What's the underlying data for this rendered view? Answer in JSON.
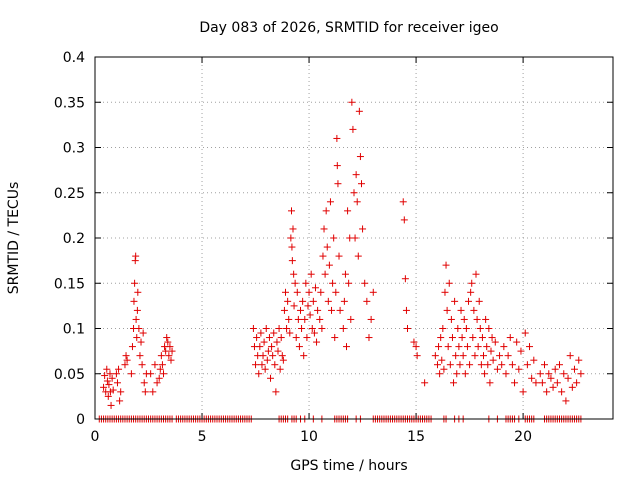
{
  "chart_data": {
    "type": "scatter",
    "title": "Day 083 of 2026, SRMTID for receiver igeo",
    "xlabel": "GPS time / hours",
    "ylabel": "SRMTID / TECUs",
    "xlim": [
      0,
      24.2
    ],
    "ylim": [
      0,
      0.4
    ],
    "xticks": [
      0,
      5,
      10,
      15,
      20
    ],
    "yticks": [
      0,
      0.05,
      0.1,
      0.15,
      0.2,
      0.25,
      0.3,
      0.35,
      0.4
    ],
    "grid": true,
    "marker": "+",
    "color": "#e00000",
    "series": [
      {
        "name": "SRMTID",
        "points": [
          [
            0.4,
            0.035
          ],
          [
            0.45,
            0.048
          ],
          [
            0.5,
            0.03
          ],
          [
            0.55,
            0.055
          ],
          [
            0.58,
            0.042
          ],
          [
            0.62,
            0.025
          ],
          [
            0.65,
            0.038
          ],
          [
            0.7,
            0.05
          ],
          [
            0.72,
            0.03
          ],
          [
            0.75,
            0.015
          ],
          [
            0.8,
            0.045
          ],
          [
            0.85,
            0.032
          ],
          [
            1.0,
            0.05
          ],
          [
            1.05,
            0.04
          ],
          [
            1.1,
            0.055
          ],
          [
            1.15,
            0.02
          ],
          [
            1.2,
            0.03
          ],
          [
            1.4,
            0.06
          ],
          [
            1.45,
            0.07
          ],
          [
            1.5,
            0.065
          ],
          [
            1.7,
            0.05
          ],
          [
            1.75,
            0.08
          ],
          [
            1.8,
            0.1
          ],
          [
            1.82,
            0.13
          ],
          [
            1.85,
            0.15
          ],
          [
            1.88,
            0.175
          ],
          [
            1.9,
            0.18
          ],
          [
            1.92,
            0.11
          ],
          [
            1.95,
            0.09
          ],
          [
            1.98,
            0.12
          ],
          [
            2.0,
            0.14
          ],
          [
            2.05,
            0.1
          ],
          [
            2.1,
            0.07
          ],
          [
            2.15,
            0.085
          ],
          [
            2.2,
            0.06
          ],
          [
            2.25,
            0.095
          ],
          [
            2.3,
            0.04
          ],
          [
            2.35,
            0.03
          ],
          [
            2.4,
            0.05
          ],
          [
            2.6,
            0.05
          ],
          [
            2.7,
            0.03
          ],
          [
            2.8,
            0.06
          ],
          [
            2.9,
            0.04
          ],
          [
            3.0,
            0.045
          ],
          [
            3.05,
            0.055
          ],
          [
            3.1,
            0.07
          ],
          [
            3.15,
            0.06
          ],
          [
            3.2,
            0.05
          ],
          [
            3.25,
            0.08
          ],
          [
            3.3,
            0.075
          ],
          [
            3.35,
            0.09
          ],
          [
            3.4,
            0.085
          ],
          [
            3.45,
            0.07
          ],
          [
            3.5,
            0.08
          ],
          [
            3.55,
            0.065
          ],
          [
            3.6,
            0.075
          ],
          [
            7.4,
            0.1
          ],
          [
            7.45,
            0.08
          ],
          [
            7.5,
            0.06
          ],
          [
            7.55,
            0.09
          ],
          [
            7.6,
            0.07
          ],
          [
            7.65,
            0.05
          ],
          [
            7.7,
            0.08
          ],
          [
            7.75,
            0.095
          ],
          [
            7.8,
            0.06
          ],
          [
            7.85,
            0.07
          ],
          [
            7.9,
            0.085
          ],
          [
            7.95,
            0.055
          ],
          [
            8.0,
            0.1
          ],
          [
            8.05,
            0.065
          ],
          [
            8.1,
            0.075
          ],
          [
            8.15,
            0.09
          ],
          [
            8.2,
            0.045
          ],
          [
            8.25,
            0.08
          ],
          [
            8.3,
            0.07
          ],
          [
            8.35,
            0.095
          ],
          [
            8.4,
            0.06
          ],
          [
            8.45,
            0.03
          ],
          [
            8.5,
            0.085
          ],
          [
            8.55,
            0.075
          ],
          [
            8.6,
            0.1
          ],
          [
            8.65,
            0.055
          ],
          [
            8.7,
            0.09
          ],
          [
            8.75,
            0.07
          ],
          [
            8.8,
            0.065
          ],
          [
            8.85,
            0.12
          ],
          [
            8.9,
            0.14
          ],
          [
            8.95,
            0.1
          ],
          [
            9.0,
            0.13
          ],
          [
            9.05,
            0.11
          ],
          [
            9.1,
            0.095
          ],
          [
            9.15,
            0.2
          ],
          [
            9.18,
            0.23
          ],
          [
            9.2,
            0.19
          ],
          [
            9.22,
            0.175
          ],
          [
            9.25,
            0.21
          ],
          [
            9.28,
            0.16
          ],
          [
            9.3,
            0.125
          ],
          [
            9.35,
            0.15
          ],
          [
            9.4,
            0.09
          ],
          [
            9.45,
            0.14
          ],
          [
            9.5,
            0.11
          ],
          [
            9.55,
            0.08
          ],
          [
            9.6,
            0.12
          ],
          [
            9.65,
            0.1
          ],
          [
            9.7,
            0.13
          ],
          [
            9.75,
            0.07
          ],
          [
            9.8,
            0.11
          ],
          [
            9.85,
            0.15
          ],
          [
            9.9,
            0.09
          ],
          [
            9.95,
            0.125
          ],
          [
            10.0,
            0.14
          ],
          [
            10.05,
            0.115
          ],
          [
            10.1,
            0.16
          ],
          [
            10.15,
            0.1
          ],
          [
            10.2,
            0.13
          ],
          [
            10.25,
            0.095
          ],
          [
            10.3,
            0.145
          ],
          [
            10.35,
            0.085
          ],
          [
            10.4,
            0.12
          ],
          [
            10.5,
            0.11
          ],
          [
            10.55,
            0.14
          ],
          [
            10.6,
            0.1
          ],
          [
            10.65,
            0.18
          ],
          [
            10.7,
            0.21
          ],
          [
            10.75,
            0.16
          ],
          [
            10.8,
            0.23
          ],
          [
            10.85,
            0.19
          ],
          [
            10.9,
            0.13
          ],
          [
            10.95,
            0.17
          ],
          [
            11.0,
            0.24
          ],
          [
            11.05,
            0.12
          ],
          [
            11.1,
            0.15
          ],
          [
            11.15,
            0.2
          ],
          [
            11.2,
            0.09
          ],
          [
            11.25,
            0.14
          ],
          [
            11.3,
            0.31
          ],
          [
            11.32,
            0.28
          ],
          [
            11.35,
            0.26
          ],
          [
            11.4,
            0.18
          ],
          [
            11.45,
            0.12
          ],
          [
            11.6,
            0.1
          ],
          [
            11.65,
            0.13
          ],
          [
            11.7,
            0.16
          ],
          [
            11.75,
            0.08
          ],
          [
            11.8,
            0.23
          ],
          [
            11.85,
            0.15
          ],
          [
            11.9,
            0.2
          ],
          [
            11.95,
            0.11
          ],
          [
            12.0,
            0.35
          ],
          [
            12.05,
            0.32
          ],
          [
            12.1,
            0.25
          ],
          [
            12.15,
            0.2
          ],
          [
            12.2,
            0.27
          ],
          [
            12.25,
            0.24
          ],
          [
            12.3,
            0.18
          ],
          [
            12.35,
            0.34
          ],
          [
            12.4,
            0.29
          ],
          [
            12.45,
            0.26
          ],
          [
            12.5,
            0.21
          ],
          [
            12.6,
            0.15
          ],
          [
            12.7,
            0.13
          ],
          [
            12.8,
            0.09
          ],
          [
            12.9,
            0.11
          ],
          [
            13.0,
            0.14
          ],
          [
            14.4,
            0.24
          ],
          [
            14.45,
            0.22
          ],
          [
            14.5,
            0.155
          ],
          [
            14.55,
            0.12
          ],
          [
            14.6,
            0.1
          ],
          [
            14.9,
            0.085
          ],
          [
            15.0,
            0.08
          ],
          [
            15.05,
            0.07
          ],
          [
            15.4,
            0.04
          ],
          [
            15.9,
            0.07
          ],
          [
            16.0,
            0.06
          ],
          [
            16.05,
            0.08
          ],
          [
            16.1,
            0.05
          ],
          [
            16.15,
            0.09
          ],
          [
            16.2,
            0.065
          ],
          [
            16.25,
            0.1
          ],
          [
            16.3,
            0.055
          ],
          [
            16.35,
            0.14
          ],
          [
            16.4,
            0.17
          ],
          [
            16.45,
            0.12
          ],
          [
            16.5,
            0.08
          ],
          [
            16.55,
            0.15
          ],
          [
            16.6,
            0.06
          ],
          [
            16.65,
            0.11
          ],
          [
            16.7,
            0.09
          ],
          [
            16.75,
            0.04
          ],
          [
            16.8,
            0.13
          ],
          [
            16.85,
            0.07
          ],
          [
            16.9,
            0.05
          ],
          [
            16.95,
            0.1
          ],
          [
            17.0,
            0.08
          ],
          [
            17.05,
            0.06
          ],
          [
            17.1,
            0.12
          ],
          [
            17.15,
            0.09
          ],
          [
            17.2,
            0.07
          ],
          [
            17.25,
            0.11
          ],
          [
            17.3,
            0.05
          ],
          [
            17.35,
            0.1
          ],
          [
            17.4,
            0.08
          ],
          [
            17.45,
            0.13
          ],
          [
            17.5,
            0.06
          ],
          [
            17.55,
            0.14
          ],
          [
            17.6,
            0.15
          ],
          [
            17.65,
            0.09
          ],
          [
            17.7,
            0.12
          ],
          [
            17.75,
            0.07
          ],
          [
            17.8,
            0.16
          ],
          [
            17.85,
            0.11
          ],
          [
            17.9,
            0.08
          ],
          [
            17.95,
            0.13
          ],
          [
            18.0,
            0.1
          ],
          [
            18.05,
            0.06
          ],
          [
            18.1,
            0.09
          ],
          [
            18.15,
            0.07
          ],
          [
            18.2,
            0.05
          ],
          [
            18.25,
            0.11
          ],
          [
            18.3,
            0.08
          ],
          [
            18.35,
            0.06
          ],
          [
            18.4,
            0.1
          ],
          [
            18.45,
            0.04
          ],
          [
            18.5,
            0.075
          ],
          [
            18.55,
            0.09
          ],
          [
            18.6,
            0.065
          ],
          [
            18.7,
            0.085
          ],
          [
            18.8,
            0.055
          ],
          [
            18.9,
            0.07
          ],
          [
            19.0,
            0.06
          ],
          [
            19.1,
            0.08
          ],
          [
            19.2,
            0.05
          ],
          [
            19.3,
            0.07
          ],
          [
            19.4,
            0.09
          ],
          [
            19.5,
            0.06
          ],
          [
            19.6,
            0.04
          ],
          [
            19.7,
            0.085
          ],
          [
            19.8,
            0.055
          ],
          [
            19.9,
            0.075
          ],
          [
            20.0,
            0.03
          ],
          [
            20.1,
            0.095
          ],
          [
            20.2,
            0.06
          ],
          [
            20.3,
            0.08
          ],
          [
            20.4,
            0.045
          ],
          [
            20.5,
            0.065
          ],
          [
            20.6,
            0.04
          ],
          [
            20.8,
            0.05
          ],
          [
            20.9,
            0.04
          ],
          [
            21.0,
            0.06
          ],
          [
            21.1,
            0.03
          ],
          [
            21.2,
            0.05
          ],
          [
            21.3,
            0.045
          ],
          [
            21.4,
            0.035
          ],
          [
            21.5,
            0.055
          ],
          [
            21.6,
            0.04
          ],
          [
            21.7,
            0.06
          ],
          [
            21.8,
            0.03
          ],
          [
            21.9,
            0.05
          ],
          [
            22.0,
            0.02
          ],
          [
            22.1,
            0.045
          ],
          [
            22.2,
            0.07
          ],
          [
            22.3,
            0.035
          ],
          [
            22.4,
            0.055
          ],
          [
            22.5,
            0.04
          ],
          [
            22.6,
            0.065
          ],
          [
            22.7,
            0.05
          ]
        ],
        "zero_hours": [
          0.2,
          0.3,
          0.4,
          0.5,
          0.6,
          0.7,
          0.8,
          0.9,
          1.0,
          1.1,
          1.2,
          1.3,
          1.4,
          1.5,
          1.6,
          1.7,
          1.8,
          1.9,
          2.0,
          2.1,
          2.2,
          2.3,
          2.4,
          2.5,
          2.6,
          2.7,
          2.8,
          2.9,
          3.0,
          3.1,
          3.2,
          3.3,
          3.4,
          3.5,
          3.6,
          3.8,
          3.9,
          4.0,
          4.1,
          4.2,
          4.3,
          4.4,
          4.5,
          4.6,
          4.7,
          4.8,
          4.9,
          5.0,
          5.1,
          5.2,
          5.3,
          5.4,
          5.5,
          5.6,
          5.7,
          5.8,
          5.9,
          6.0,
          6.1,
          6.2,
          6.3,
          6.4,
          6.5,
          6.6,
          6.7,
          6.8,
          6.9,
          7.0,
          7.1,
          7.2,
          7.3,
          8.6,
          8.7,
          8.8,
          8.9,
          9.0,
          9.2,
          9.3,
          9.4,
          9.6,
          9.8,
          10.2,
          10.6,
          11.2,
          11.3,
          11.4,
          11.5,
          11.6,
          11.7,
          11.8,
          12.2,
          12.4,
          13.0,
          13.1,
          13.2,
          13.3,
          13.4,
          13.5,
          13.6,
          13.7,
          13.8,
          13.9,
          14.0,
          14.1,
          14.2,
          14.3,
          14.4,
          14.5,
          14.6,
          14.7,
          14.8,
          14.9,
          15.0,
          15.1,
          15.2,
          15.3,
          15.4,
          15.5,
          15.6,
          15.7,
          16.3,
          16.4,
          16.8,
          17.0,
          17.2,
          18.4,
          18.8,
          19.2,
          19.3,
          19.4,
          19.5,
          19.6,
          19.8,
          20.1,
          20.2,
          20.3,
          20.4,
          20.5,
          21.0,
          21.1,
          21.2,
          21.3,
          21.4,
          21.5,
          21.6,
          21.7,
          21.8,
          21.9,
          22.0,
          22.1,
          22.2,
          22.3,
          22.4,
          22.5,
          22.6,
          22.7
        ]
      }
    ]
  }
}
